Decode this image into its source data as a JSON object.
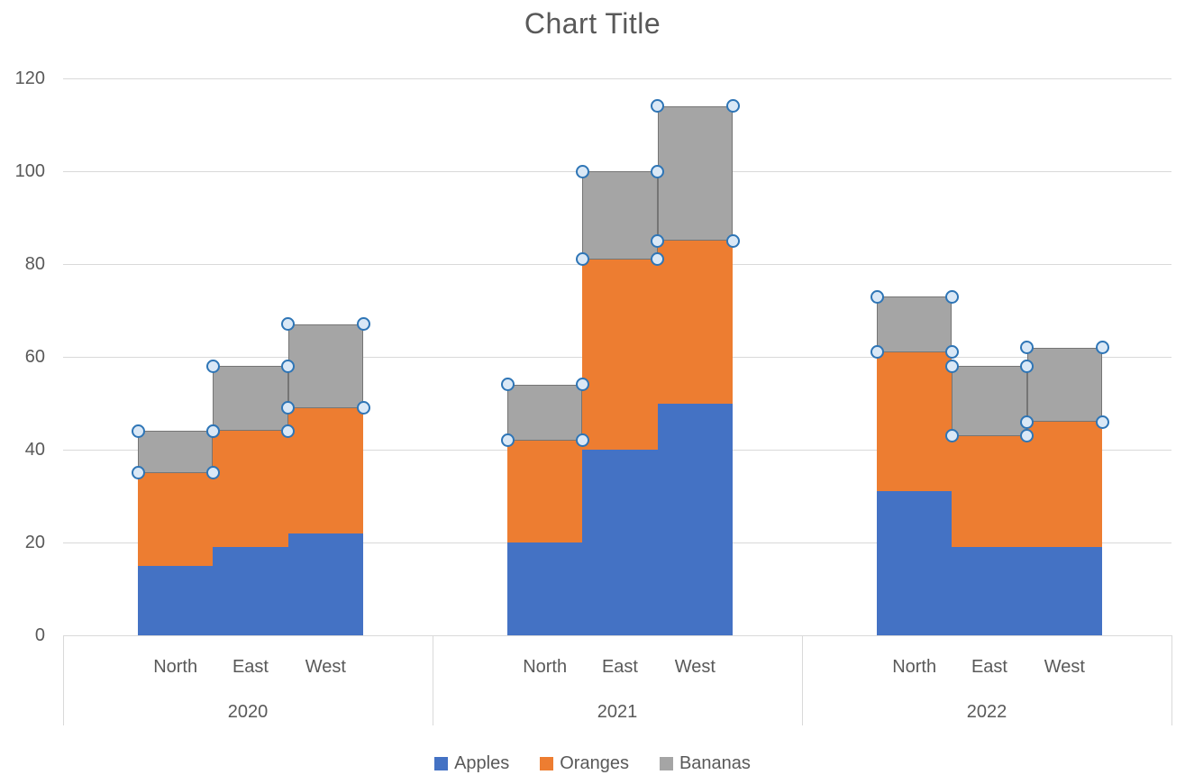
{
  "title": "Chart Title",
  "colors": {
    "background": "#FFFFFF",
    "text": "#595959",
    "grid": "#D9D9D9",
    "axis_line": "#D9D9D9",
    "selected_segment_border": "#757575",
    "selection_handle_fill": "#DAE8F6",
    "selection_handle_stroke": "#2E75B6"
  },
  "chart_data": {
    "type": "bar",
    "stacked": true,
    "title": "Chart Title",
    "groups": [
      "2020",
      "2021",
      "2022"
    ],
    "categories": [
      "North",
      "East",
      "West"
    ],
    "series": [
      {
        "name": "Apples",
        "color": "#4472C4",
        "selected": false,
        "values": [
          [
            15,
            19,
            22
          ],
          [
            20,
            40,
            50
          ],
          [
            31,
            19,
            19
          ]
        ]
      },
      {
        "name": "Oranges",
        "color": "#ED7D31",
        "selected": false,
        "values": [
          [
            20,
            25,
            27
          ],
          [
            22,
            41,
            35
          ],
          [
            30,
            24,
            27
          ]
        ]
      },
      {
        "name": "Bananas",
        "color": "#A5A5A5",
        "selected": true,
        "values": [
          [
            9,
            14,
            18
          ],
          [
            12,
            19,
            29
          ],
          [
            12,
            15,
            16
          ]
        ]
      }
    ],
    "stack_totals": [
      [
        44,
        58,
        67
      ],
      [
        54,
        100,
        114
      ],
      [
        73,
        58,
        62
      ]
    ],
    "y_ticks": [
      0,
      20,
      40,
      60,
      80,
      100,
      120
    ],
    "ylim": [
      0,
      120
    ],
    "grid": true,
    "legend_position": "bottom",
    "selected_series": "Bananas"
  }
}
